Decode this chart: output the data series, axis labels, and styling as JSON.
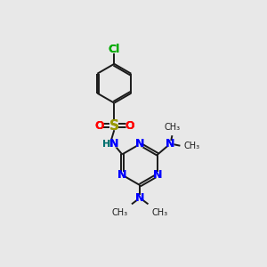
{
  "background_color": "#e8e8e8",
  "bond_color": "#1a1a1a",
  "N_color": "#0000ff",
  "O_color": "#ff0000",
  "S_color": "#999900",
  "Cl_color": "#00aa00",
  "H_color": "#007070",
  "figsize": [
    3.0,
    3.0
  ],
  "dpi": 100,
  "xlim": [
    0,
    10
  ],
  "ylim": [
    0,
    10
  ]
}
